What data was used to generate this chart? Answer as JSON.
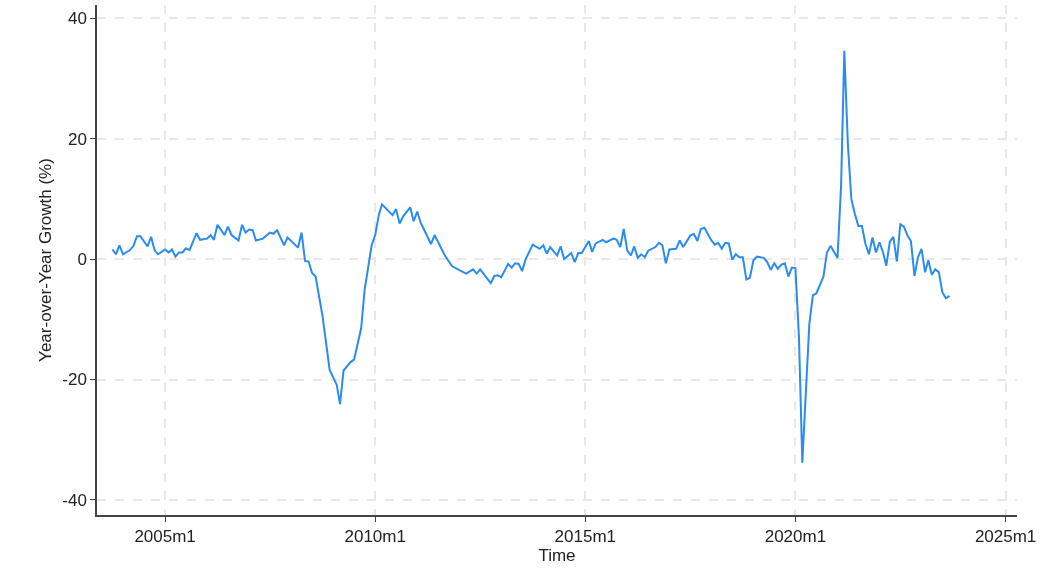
{
  "chart_data": {
    "type": "line",
    "xlabel": "Time",
    "ylabel": "Year-over-Year Growth (%)",
    "x": [
      "2003-10",
      "2003-11",
      "2003-12",
      "2004-01",
      "2004-03",
      "2004-04",
      "2004-05",
      "2004-06",
      "2004-08",
      "2004-09",
      "2004-10",
      "2004-11",
      "2005-01",
      "2005-02",
      "2005-03",
      "2005-04",
      "2005-05",
      "2005-06",
      "2005-07",
      "2005-08",
      "2005-10",
      "2005-11",
      "2006-01",
      "2006-02",
      "2006-03",
      "2006-04",
      "2006-06",
      "2006-07",
      "2006-08",
      "2006-10",
      "2006-11",
      "2006-12",
      "2007-01",
      "2007-02",
      "2007-03",
      "2007-05",
      "2007-07",
      "2007-08",
      "2007-09",
      "2007-11",
      "2007-12",
      "2008-03",
      "2008-04",
      "2008-05",
      "2008-06",
      "2008-07",
      "2008-08",
      "2008-10",
      "2008-12",
      "2009-02",
      "2009-03",
      "2009-04",
      "2009-06",
      "2009-07",
      "2009-09",
      "2009-10",
      "2009-12",
      "2010-01",
      "2010-02",
      "2010-03",
      "2010-06",
      "2010-07",
      "2010-08",
      "2010-09",
      "2010-11",
      "2010-12",
      "2011-01",
      "2011-02",
      "2011-05",
      "2011-06",
      "2011-09",
      "2011-11",
      "2012-03",
      "2012-05",
      "2012-06",
      "2012-07",
      "2012-10",
      "2012-11",
      "2012-12",
      "2013-01",
      "2013-03",
      "2013-04",
      "2013-05",
      "2013-06",
      "2013-07",
      "2013-08",
      "2013-10",
      "2013-12",
      "2014-01",
      "2014-02",
      "2014-03",
      "2014-05",
      "2014-06",
      "2014-07",
      "2014-09",
      "2014-10",
      "2014-11",
      "2014-12",
      "2015-02",
      "2015-03",
      "2015-04",
      "2015-06",
      "2015-07",
      "2015-09",
      "2015-10",
      "2015-11",
      "2015-12",
      "2016-01",
      "2016-02",
      "2016-03",
      "2016-04",
      "2016-05",
      "2016-06",
      "2016-07",
      "2016-09",
      "2016-10",
      "2016-11",
      "2016-12",
      "2017-01",
      "2017-03",
      "2017-04",
      "2017-05",
      "2017-07",
      "2017-08",
      "2017-09",
      "2017-10",
      "2017-11",
      "2018-01",
      "2018-02",
      "2018-03",
      "2018-04",
      "2018-05",
      "2018-06",
      "2018-07",
      "2018-08",
      "2018-09",
      "2018-10",
      "2018-11",
      "2018-12",
      "2019-01",
      "2019-02",
      "2019-04",
      "2019-05",
      "2019-06",
      "2019-07",
      "2019-08",
      "2019-09",
      "2019-10",
      "2019-11",
      "2019-12",
      "2020-01",
      "2020-02",
      "2020-03",
      "2020-05",
      "2020-06",
      "2020-07",
      "2020-09",
      "2020-10",
      "2020-11",
      "2021-01",
      "2021-02",
      "2021-03",
      "2021-04",
      "2021-05",
      "2021-06",
      "2021-07",
      "2021-08",
      "2021-09",
      "2021-10",
      "2021-11",
      "2021-12",
      "2022-01",
      "2022-02",
      "2022-03",
      "2022-04",
      "2022-05",
      "2022-06",
      "2022-07",
      "2022-08",
      "2022-09",
      "2022-10",
      "2022-11",
      "2022-12",
      "2023-01",
      "2023-02",
      "2023-03",
      "2023-04",
      "2023-05",
      "2023-06",
      "2023-07",
      "2023-08",
      "2023-09"
    ],
    "series": [
      {
        "color": "#2a8cf0",
        "values": [
          1.6,
          0.8,
          2.3,
          0.8,
          1.5,
          2.2,
          3.8,
          3.8,
          2.1,
          3.7,
          1.5,
          0.8,
          1.6,
          1.1,
          1.6,
          0.4,
          1.1,
          1.1,
          1.8,
          1.5,
          4.3,
          3.2,
          3.4,
          4.0,
          3.2,
          5.7,
          4.0,
          5.4,
          4.0,
          3.1,
          5.7,
          4.4,
          4.9,
          4.8,
          3.1,
          3.4,
          4.4,
          4.2,
          4.8,
          2.3,
          3.6,
          1.9,
          4.4,
          -0.3,
          -0.4,
          -2.3,
          -2.9,
          -9.6,
          -18.4,
          -20.9,
          -24.1,
          -18.5,
          -17.1,
          -16.7,
          -11.5,
          -5.1,
          2.3,
          4.0,
          7.3,
          9.1,
          7.3,
          8.3,
          5.9,
          7.1,
          8.6,
          6.3,
          7.9,
          6.0,
          2.5,
          4.0,
          0.5,
          -1.2,
          -2.4,
          -1.7,
          -2.4,
          -1.7,
          -4.0,
          -2.8,
          -2.7,
          -3.0,
          -0.8,
          -1.4,
          -0.7,
          -0.8,
          -2.0,
          0.0,
          2.4,
          1.7,
          2.3,
          0.9,
          2.0,
          0.6,
          2.1,
          0.0,
          1.0,
          -0.5,
          1.0,
          1.0,
          3.0,
          1.2,
          2.6,
          3.2,
          2.8,
          3.4,
          3.2,
          2.0,
          5.0,
          1.4,
          0.6,
          2.1,
          0.2,
          0.8,
          0.3,
          1.4,
          2.0,
          2.7,
          2.3,
          -0.7,
          1.6,
          1.7,
          3.1,
          2.0,
          3.9,
          4.2,
          3.0,
          5.0,
          5.2,
          3.1,
          2.4,
          2.7,
          1.7,
          2.7,
          2.6,
          -0.1,
          0.8,
          0.3,
          0.3,
          -3.4,
          -3.1,
          -0.2,
          0.4,
          0.2,
          -0.5,
          -1.8,
          -0.7,
          -1.6,
          -0.9,
          -0.7,
          -2.9,
          -1.4,
          -1.5,
          -13.0,
          -33.8,
          -10.8,
          -6.0,
          -5.7,
          -2.9,
          1.1,
          2.2,
          0.2,
          12.2,
          34.6,
          19.1,
          10.0,
          7.5,
          5.5,
          5.5,
          2.5,
          0.8,
          3.6,
          1.1,
          2.8,
          1.1,
          -1.1,
          2.9,
          3.7,
          -0.4,
          5.8,
          5.4,
          3.9,
          3.0,
          -2.8,
          0.3,
          1.7,
          -2.2,
          -0.2,
          -2.6,
          -1.7,
          -2.2,
          -5.5,
          -6.5,
          -6.1
        ]
      }
    ],
    "xlim": [
      "2003-05-20",
      "2025-04-10"
    ],
    "xticks": [
      {
        "value": "2005-01",
        "label": "2005m1"
      },
      {
        "value": "2010-01",
        "label": "2010m1"
      },
      {
        "value": "2015-01",
        "label": "2015m1"
      },
      {
        "value": "2020-01",
        "label": "2020m1"
      },
      {
        "value": "2025-01",
        "label": "2025m1"
      }
    ],
    "ylim": [
      -42.5,
      42.2
    ],
    "yticks": [
      -40,
      -20,
      0,
      20,
      40
    ],
    "grid": true,
    "line_style": "solid"
  }
}
